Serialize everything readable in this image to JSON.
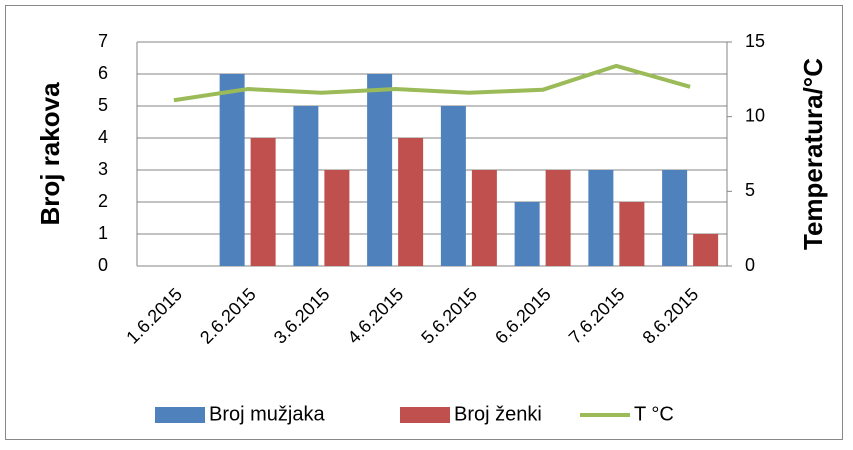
{
  "chart_data": {
    "type": "bar",
    "categories": [
      "1.6.2015",
      "2.6.2015",
      "3.6.2015",
      "4.6.2015",
      "5.6.2015",
      "6.6.2015",
      "7.6.2015",
      "8.6.2015"
    ],
    "series": [
      {
        "name": "Broj mužjaka",
        "color": "#4f81bd",
        "values": [
          0,
          6,
          5,
          6,
          5,
          2,
          3,
          3
        ]
      },
      {
        "name": "Broj ženki",
        "color": "#c0504d",
        "values": [
          0,
          4,
          3,
          4,
          3,
          3,
          2,
          1
        ]
      },
      {
        "name": "T °C",
        "color": "#9bbb59",
        "type": "line",
        "axis": "y2",
        "values": [
          11.1,
          11.85,
          11.6,
          11.85,
          11.6,
          11.8,
          13.4,
          12.0
        ]
      }
    ],
    "ylabel": "Broj rakova",
    "y2label": "Temperatura/°C",
    "ylim": [
      0,
      7
    ],
    "yticks": [
      0,
      1,
      2,
      3,
      4,
      5,
      6,
      7
    ],
    "y2lim": [
      0,
      15
    ],
    "y2ticks": [
      0,
      5,
      10,
      15
    ],
    "grid": true,
    "legend": "bottom"
  }
}
